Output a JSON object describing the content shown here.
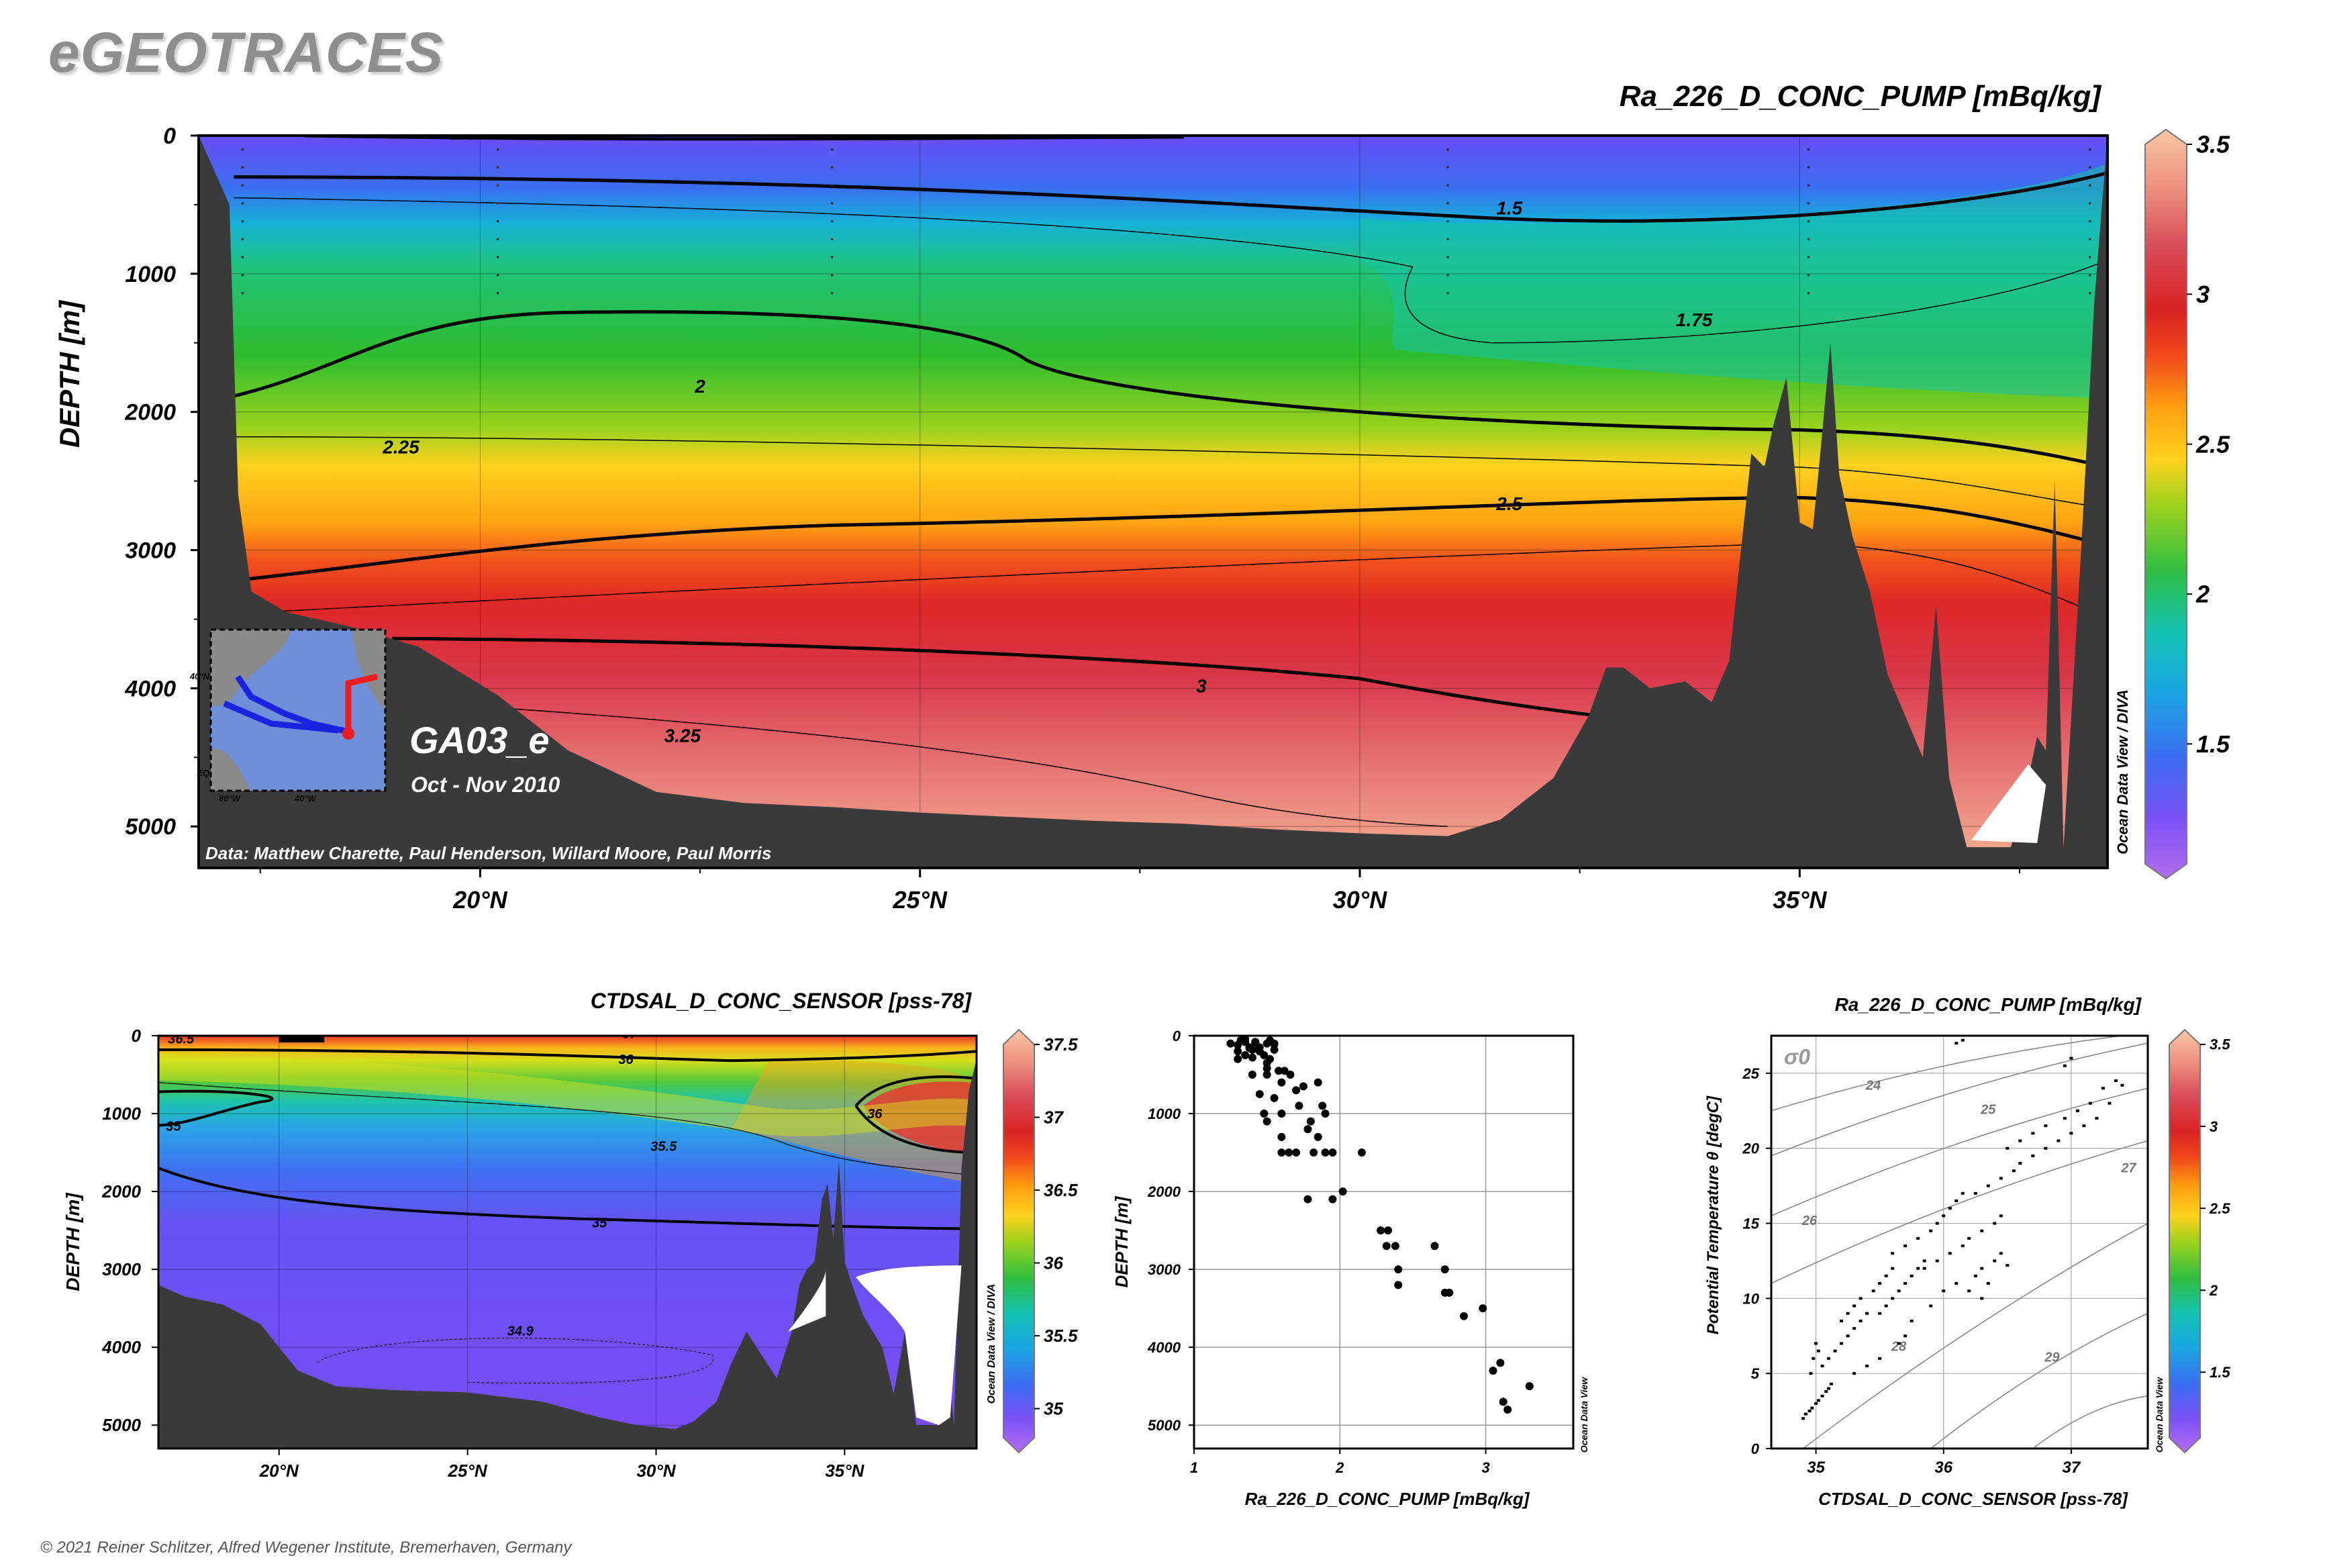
{
  "brand": "eGEOTRACES",
  "copyright": "© 2021 Reiner Schlitzer, Alfred Wegener Institute, Bremerhaven, Germany",
  "colors": {
    "colormap": [
      "#b56cf0",
      "#7d52f5",
      "#3f6cf0",
      "#1fa3e8",
      "#14c4c4",
      "#1cc27a",
      "#2fbf2f",
      "#8fcc1e",
      "#ffd21e",
      "#ffaa10",
      "#f46a1a",
      "#e32a22",
      "#d43a44",
      "#e06a6a",
      "#f0a088",
      "#f7c0a0"
    ],
    "bathymetry": "#3a3a3a",
    "frame": "#000000"
  },
  "chart_data": [
    {
      "id": "main-section",
      "type": "heatmap",
      "title": "Ra_226_D_CONC_PUMP [mBq/kg]",
      "ylabel": "DEPTH [m]",
      "y_ticks": [
        "0",
        "1000",
        "2000",
        "3000",
        "4000",
        "5000"
      ],
      "x_ticks": [
        "20°N",
        "25°N",
        "30°N",
        "35°N"
      ],
      "x_tick_values": [
        20,
        25,
        30,
        35
      ],
      "xlim": [
        16.8,
        38.5
      ],
      "ylim": [
        0,
        5300
      ],
      "colorbar_ticks": [
        "1.5",
        "2",
        "2.5",
        "3",
        "3.5"
      ],
      "colorbar_values": [
        1.5,
        2,
        2.5,
        3,
        3.5
      ],
      "colorbar_range": [
        1.1,
        3.5
      ],
      "contour_labels": [
        "1.5",
        "1.5",
        "1.75",
        "2",
        "2.25",
        "2.5",
        "3",
        "3.25"
      ],
      "cruise": "GA03_e",
      "period": "Oct - Nov 2010",
      "credit": "Data: Matthew Charette, Paul Henderson, Willard Moore, Paul Morris",
      "watermark": "Ocean Data View / DIVA",
      "inset_labels": [
        "40°N",
        "EQ",
        "80°W",
        "40°W"
      ]
    },
    {
      "id": "salinity-section",
      "type": "heatmap",
      "title": "CTDSAL_D_CONC_SENSOR [pss-78]",
      "ylabel": "DEPTH [m]",
      "y_ticks": [
        "0",
        "1000",
        "2000",
        "3000",
        "4000",
        "5000"
      ],
      "x_ticks": [
        "20°N",
        "25°N",
        "30°N",
        "35°N"
      ],
      "x_tick_values": [
        20,
        25,
        30,
        35
      ],
      "xlim": [
        16.8,
        38.5
      ],
      "ylim": [
        0,
        5300
      ],
      "colorbar_ticks": [
        "35",
        "35.5",
        "36",
        "36.5",
        "37",
        "37.5"
      ],
      "colorbar_values": [
        35,
        35.5,
        36,
        36.5,
        37,
        37.5
      ],
      "colorbar_range": [
        34.8,
        37.5
      ],
      "contour_labels": [
        "36.5",
        "37",
        "37",
        "36",
        "35",
        "35.5",
        "36",
        "35",
        "34.9"
      ],
      "watermark": "Ocean Data View / DIVA"
    },
    {
      "id": "profile-scatter",
      "type": "scatter",
      "xlabel": "Ra_226_D_CONC_PUMP [mBq/kg]",
      "ylabel": "DEPTH [m]",
      "x_ticks": [
        "1",
        "2",
        "3"
      ],
      "y_ticks": [
        "0",
        "1000",
        "2000",
        "3000",
        "4000",
        "5000"
      ],
      "xlim": [
        1,
        3.6
      ],
      "ylim": [
        0,
        5300
      ],
      "watermark": "Ocean Data View",
      "x": [
        1.25,
        1.3,
        1.32,
        1.35,
        1.38,
        1.4,
        1.42,
        1.45,
        1.48,
        1.5,
        1.52,
        1.55,
        1.3,
        1.35,
        1.4,
        1.45,
        1.5,
        1.55,
        1.4,
        1.5,
        1.6,
        1.3,
        1.38,
        1.45,
        1.52,
        1.35,
        1.42,
        1.55,
        1.45,
        1.5,
        1.58,
        1.48,
        1.62,
        1.66,
        1.7,
        1.75,
        1.85,
        1.55,
        1.6,
        1.72,
        1.8,
        1.88,
        1.5,
        1.9,
        1.6,
        1.78,
        1.85,
        1.7,
        1.6,
        1.65,
        1.82,
        1.9,
        1.95,
        2.15,
        1.78,
        1.95,
        2.02,
        2.28,
        2.33,
        2.32,
        2.38,
        2.4,
        2.4,
        2.65,
        2.72,
        2.72,
        2.75,
        2.85,
        2.98,
        3.05,
        3.1,
        3.12,
        3.15,
        3.3
      ],
      "y": [
        100,
        120,
        60,
        40,
        150,
        180,
        80,
        200,
        250,
        100,
        60,
        110,
        300,
        250,
        280,
        200,
        350,
        180,
        500,
        420,
        600,
        200,
        160,
        150,
        300,
        80,
        90,
        100,
        750,
        500,
        450,
        1000,
        450,
        500,
        700,
        650,
        600,
        800,
        1000,
        900,
        1100,
        900,
        1100,
        1000,
        1300,
        1200,
        1300,
        1500,
        1500,
        1500,
        1500,
        1500,
        1500,
        1500,
        2100,
        2100,
        2000,
        2500,
        2500,
        2700,
        2700,
        3000,
        3200,
        2700,
        3000,
        3300,
        3300,
        3600,
        3500,
        4300,
        4200,
        4700,
        4800,
        4500
      ]
    },
    {
      "id": "ts-scatter",
      "type": "scatter",
      "title": "Ra_226_D_CONC_PUMP [mBq/kg]",
      "xlabel": "CTDSAL_D_CONC_SENSOR [pss-78]",
      "ylabel": "Potential Temperature θ [degC]",
      "x_ticks": [
        "35",
        "36",
        "37"
      ],
      "y_ticks": [
        "0",
        "5",
        "10",
        "15",
        "20",
        "25"
      ],
      "xlim": [
        34.65,
        37.6
      ],
      "ylim": [
        0,
        27.5
      ],
      "sigma_label": "σ0",
      "isopycnal_labels": [
        "24",
        "25",
        "26",
        "27",
        "28",
        "29"
      ],
      "colorbar_ticks": [
        "1.5",
        "2",
        "2.5",
        "3",
        "3.5"
      ],
      "colorbar_values": [
        1.5,
        2,
        2.5,
        3,
        3.5
      ],
      "colorbar_range": [
        1.1,
        3.5
      ],
      "watermark": "Ocean Data View",
      "x": [
        34.9,
        34.92,
        34.95,
        34.97,
        35.0,
        35.02,
        35.05,
        35.08,
        35.1,
        35.12,
        34.96,
        34.98,
        35.02,
        35.0,
        35.05,
        35.1,
        35.15,
        35.2,
        35.25,
        35.3,
        35.35,
        35.4,
        35.2,
        35.25,
        35.3,
        35.35,
        35.45,
        35.5,
        35.55,
        35.6,
        35.5,
        35.55,
        35.6,
        35.65,
        35.7,
        35.75,
        35.8,
        35.85,
        35.6,
        35.7,
        35.8,
        35.9,
        35.95,
        36.0,
        36.05,
        36.1,
        36.15,
        35.85,
        35.95,
        36.05,
        36.15,
        36.2,
        36.3,
        36.4,
        36.45,
        36.25,
        36.35,
        36.45,
        36.55,
        36.6,
        36.7,
        36.8,
        36.9,
        37.0,
        37.1,
        37.2,
        37.3,
        36.5,
        36.6,
        36.7,
        36.8,
        36.95,
        37.05,
        37.15,
        37.25,
        36.3,
        36.4,
        36.45,
        36.5,
        36.25,
        36.35,
        36.2,
        36.3,
        36.1,
        36.0,
        35.9,
        35.75,
        35.7,
        35.65,
        35.5,
        35.4,
        35.3,
        37.35,
        37.4,
        36.95,
        37.0,
        36.1,
        36.15
      ],
      "y": [
        2.0,
        2.3,
        2.5,
        2.7,
        3.0,
        3.2,
        3.5,
        3.8,
        4.0,
        4.3,
        5.0,
        6.0,
        6.5,
        7.0,
        5.5,
        6.0,
        6.5,
        7.0,
        7.5,
        8.0,
        8.5,
        9.0,
        8.5,
        9.0,
        9.5,
        10.0,
        10.5,
        11.0,
        11.5,
        12.0,
        9.0,
        9.5,
        10.0,
        10.5,
        11.0,
        11.5,
        12.0,
        12.5,
        13.0,
        13.5,
        14.0,
        14.5,
        15.0,
        15.5,
        16.0,
        16.5,
        17.0,
        12.0,
        12.5,
        13.0,
        13.5,
        14.0,
        14.5,
        15.0,
        15.5,
        17.0,
        17.5,
        18.0,
        18.5,
        19.0,
        19.5,
        20.0,
        20.5,
        21.0,
        21.5,
        22.0,
        23.0,
        20.0,
        20.5,
        21.0,
        21.5,
        22.0,
        22.5,
        23.0,
        24.0,
        12.0,
        12.5,
        13.0,
        12.2,
        11.5,
        11.0,
        10.5,
        10.0,
        11.0,
        10.5,
        9.5,
        8.5,
        7.5,
        7.0,
        6.0,
        5.5,
        5.0,
        24.5,
        24.2,
        25.5,
        26.0,
        27.0,
        27.2
      ]
    }
  ]
}
